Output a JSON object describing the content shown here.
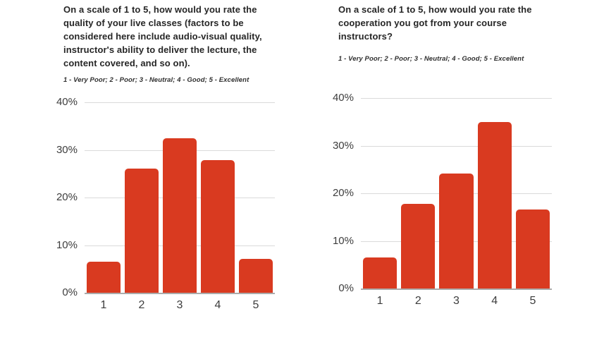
{
  "colors": {
    "bar": "#d93a20",
    "gridline": "#dadada",
    "axis": "#ababab",
    "tick_label": "#3d3d3d",
    "title": "#262626",
    "subtitle": "#2f2f2f",
    "background": "#ffffff"
  },
  "chart_data": [
    {
      "type": "bar",
      "title": "On a scale of 1 to 5, how would you rate the quality of your live classes (factors to be considered here include audio-visual quality, instructor's ability to deliver the lecture, the content covered, and so on).",
      "subtitle": "1 - Very Poor; 2 - Poor; 3 - Neutral; 4 - Good; 5 - Excellent",
      "categories": [
        "1",
        "2",
        "3",
        "4",
        "5"
      ],
      "values": [
        6.5,
        26.1,
        32.4,
        27.8,
        7.1
      ],
      "xlabel": "",
      "ylabel": "",
      "ylim": [
        0,
        40
      ],
      "y_ticks": [
        {
          "value": 0,
          "label": "0%"
        },
        {
          "value": 10,
          "label": "10%"
        },
        {
          "value": 20,
          "label": "20%"
        },
        {
          "value": 30,
          "label": "30%"
        },
        {
          "value": 40,
          "label": "40%"
        }
      ],
      "grid": true,
      "legend": "none",
      "bar_color": "#d93a20"
    },
    {
      "type": "bar",
      "title": "On a scale of 1 to 5, how would you rate the cooperation you got from your course instructors?",
      "subtitle": "1 - Very Poor; 2 - Poor; 3 - Neutral; 4 - Good; 5 - Excellent",
      "categories": [
        "1",
        "2",
        "3",
        "4",
        "5"
      ],
      "values": [
        6.5,
        17.8,
        24.2,
        35,
        16.6
      ],
      "xlabel": "",
      "ylabel": "",
      "ylim": [
        0,
        40
      ],
      "y_ticks": [
        {
          "value": 0,
          "label": "0%"
        },
        {
          "value": 10,
          "label": "10%"
        },
        {
          "value": 20,
          "label": "20%"
        },
        {
          "value": 30,
          "label": "30%"
        },
        {
          "value": 40,
          "label": "40%"
        }
      ],
      "grid": true,
      "legend": "none",
      "bar_color": "#d93a20"
    }
  ]
}
